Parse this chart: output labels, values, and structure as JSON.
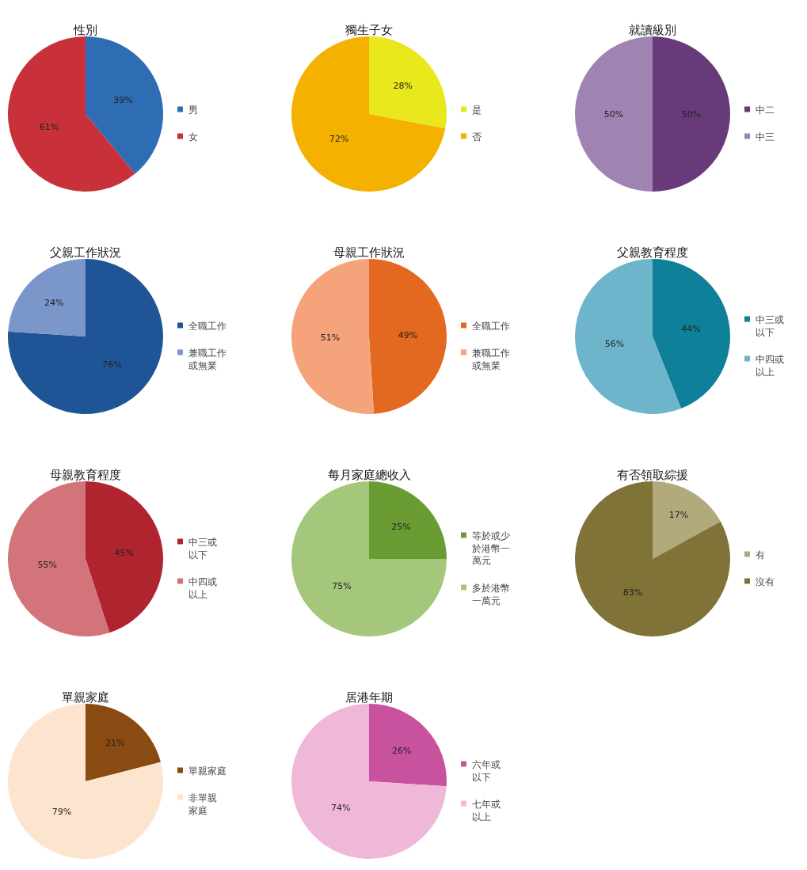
{
  "chart_data": [
    {
      "type": "pie",
      "title": "性別",
      "categories": [
        "男",
        "女"
      ],
      "values": [
        39,
        61
      ],
      "colors": [
        "#2e6db4",
        "#c8313a"
      ],
      "value_labels": [
        "39%",
        "61%"
      ],
      "legend": "right"
    },
    {
      "type": "pie",
      "title": "獨生子女",
      "categories": [
        "是",
        "否"
      ],
      "values": [
        28,
        72
      ],
      "colors": [
        "#e8e81c",
        "#f5b100"
      ],
      "value_labels": [
        "28%",
        "72%"
      ],
      "legend": "right"
    },
    {
      "type": "pie",
      "title": "就讀級別",
      "categories": [
        "中二",
        "中三"
      ],
      "values": [
        50,
        50
      ],
      "colors": [
        "#673a7a",
        "#9f84b3"
      ],
      "value_labels": [
        "50%",
        "50%"
      ],
      "legend": "right"
    },
    {
      "type": "pie",
      "title": "父親工作狀況",
      "categories": [
        "全職工作",
        "兼職工作或無業"
      ],
      "values": [
        76,
        24
      ],
      "colors": [
        "#1f5596",
        "#7b96c9"
      ],
      "value_labels": [
        "76%",
        "24%"
      ],
      "legend": "right"
    },
    {
      "type": "pie",
      "title": "母親工作狀況",
      "categories": [
        "全職工作",
        "兼職工作或無業"
      ],
      "values": [
        49,
        51
      ],
      "colors": [
        "#e2691f",
        "#f4a37a"
      ],
      "value_labels": [
        "49%",
        "51%"
      ],
      "legend": "right"
    },
    {
      "type": "pie",
      "title": "父親教育程度",
      "categories": [
        "中三或以下",
        "中四或以上"
      ],
      "values": [
        44,
        56
      ],
      "colors": [
        "#0f8099",
        "#6eb4cb"
      ],
      "value_labels": [
        "44%",
        "56%"
      ],
      "legend": "right"
    },
    {
      "type": "pie",
      "title": "母親教育程度",
      "categories": [
        "中三或以下",
        "中四或以上"
      ],
      "values": [
        45,
        55
      ],
      "colors": [
        "#b0242f",
        "#d27479"
      ],
      "value_labels": [
        "45%",
        "55%"
      ],
      "legend": "right"
    },
    {
      "type": "pie",
      "title": "每月家庭總收入",
      "categories": [
        "等於或少於港幣一萬元",
        "多於港幣一萬元"
      ],
      "values": [
        25,
        75
      ],
      "colors": [
        "#6a9c33",
        "#a4c77c"
      ],
      "value_labels": [
        "25%",
        "75%"
      ],
      "legend": "right"
    },
    {
      "type": "pie",
      "title": "有否領取綜援",
      "categories": [
        "有",
        "沒有"
      ],
      "values": [
        17,
        83
      ],
      "colors": [
        "#b0aa7c",
        "#7f7338"
      ],
      "value_labels": [
        "17%",
        "83%"
      ],
      "legend": "right"
    },
    {
      "type": "pie",
      "title": "單親家庭",
      "categories": [
        "單親家庭",
        "非單親家庭"
      ],
      "values": [
        21,
        79
      ],
      "colors": [
        "#8a4b12",
        "#fde4cf"
      ],
      "value_labels": [
        "21%",
        "79%"
      ],
      "legend": "right"
    },
    {
      "type": "pie",
      "title": "居港年期",
      "categories": [
        "六年或以下",
        "七年或以上"
      ],
      "values": [
        26,
        74
      ],
      "colors": [
        "#c9529f",
        "#efb8d8"
      ],
      "value_labels": [
        "26%",
        "74%"
      ],
      "legend": "right"
    }
  ]
}
